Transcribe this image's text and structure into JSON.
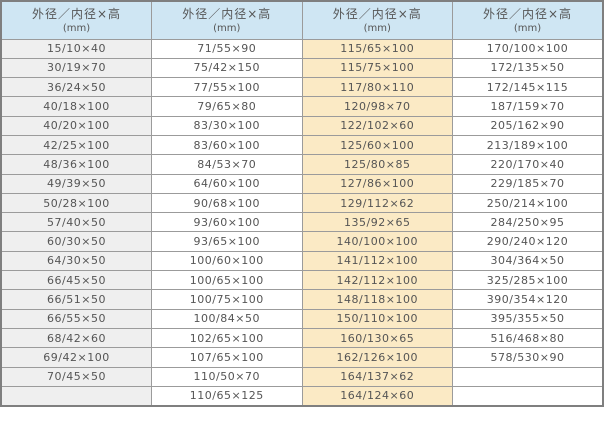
{
  "table": {
    "header_label": "外径／内径×高",
    "header_unit": "(mm)",
    "rows": [
      [
        "15/10×40",
        "71/55×90",
        "115/65×100",
        "170/100×100"
      ],
      [
        "30/19×70",
        "75/42×150",
        "115/75×100",
        "172/135×50"
      ],
      [
        "36/24×50",
        "77/55×100",
        "117/80×110",
        "172/145×115"
      ],
      [
        "40/18×100",
        "79/65×80",
        "120/98×70",
        "187/159×70"
      ],
      [
        "40/20×100",
        "83/30×100",
        "122/102×60",
        "205/162×90"
      ],
      [
        "42/25×100",
        "83/60×100",
        "125/60×100",
        "213/189×100"
      ],
      [
        "48/36×100",
        "84/53×70",
        "125/80×85",
        "220/170×40"
      ],
      [
        "49/39×50",
        "64/60×100",
        "127/86×100",
        "229/185×70"
      ],
      [
        "50/28×100",
        "90/68×100",
        "129/112×62",
        "250/214×100"
      ],
      [
        "57/40×50",
        "93/60×100",
        "135/92×65",
        "284/250×95"
      ],
      [
        "60/30×50",
        "93/65×100",
        "140/100×100",
        "290/240×120"
      ],
      [
        "64/30×50",
        "100/60×100",
        "141/112×100",
        "304/364×50"
      ],
      [
        "66/45×50",
        "100/65×100",
        "142/112×100",
        "325/285×100"
      ],
      [
        "66/51×50",
        "100/75×100",
        "148/118×100",
        "390/354×120"
      ],
      [
        "66/55×50",
        "100/84×50",
        "150/110×100",
        "395/355×50"
      ],
      [
        "68/42×60",
        "102/65×100",
        "160/130×65",
        "516/468×80"
      ],
      [
        "69/42×100",
        "107/65×100",
        "162/126×100",
        "578/530×90"
      ],
      [
        "70/45×50",
        "110/50×70",
        "164/137×62",
        ""
      ],
      [
        "",
        "110/65×125",
        "164/124×60",
        ""
      ]
    ]
  },
  "colors": {
    "header_bg": "#cfe6f3",
    "col1_bg": "#efefef",
    "col3_bg": "#fbeac5",
    "white_bg": "#ffffff",
    "border": "#9b9b9b",
    "outer_border": "#7f7f7f",
    "text": "#555555"
  }
}
